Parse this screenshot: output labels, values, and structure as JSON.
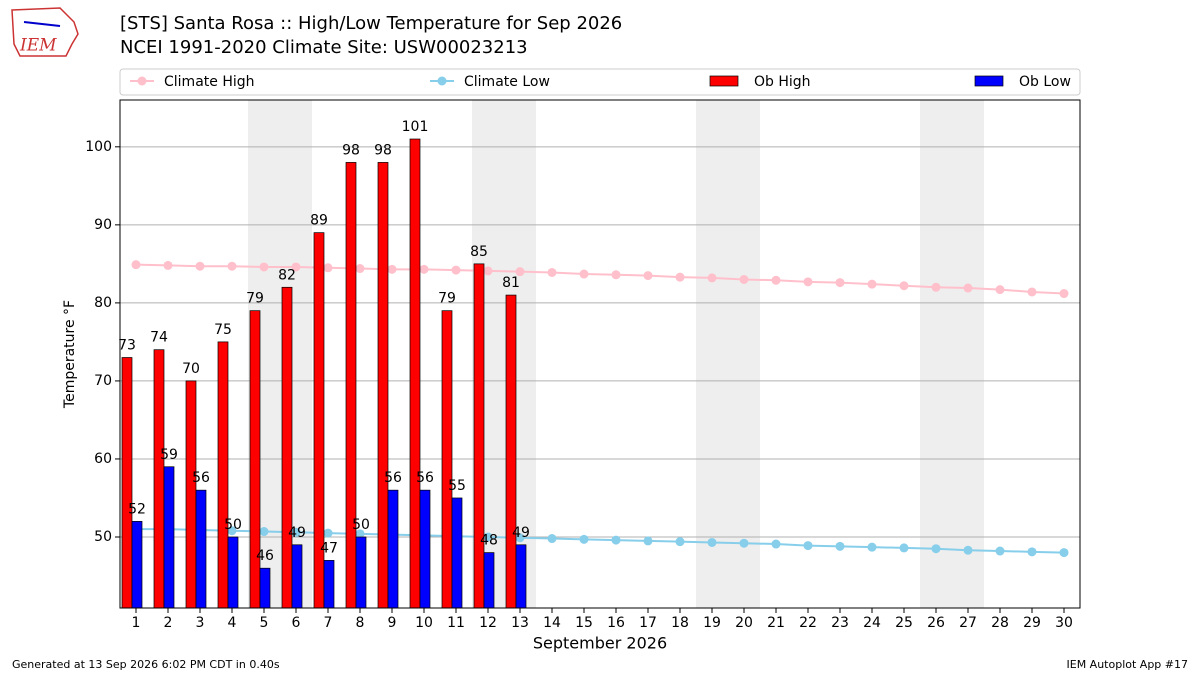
{
  "logo_text": "IEM",
  "footer_left": "Generated at 13 Sep 2026 6:02 PM CDT in 0.40s",
  "footer_right": "IEM Autoplot App #17",
  "chart_data": {
    "type": "bar_line",
    "title": "[STS] Santa Rosa :: High/Low Temperature for Sep 2026",
    "subtitle": "NCEI 1991-2020 Climate Site: USW00023213",
    "xlabel": "September 2026",
    "ylabel": "Temperature °F",
    "categories": [
      "1",
      "2",
      "3",
      "4",
      "5",
      "6",
      "7",
      "8",
      "9",
      "10",
      "11",
      "12",
      "13",
      "14",
      "15",
      "16",
      "17",
      "18",
      "19",
      "20",
      "21",
      "22",
      "23",
      "24",
      "25",
      "26",
      "27",
      "28",
      "29",
      "30"
    ],
    "shaded": [
      5,
      6,
      12,
      13,
      19,
      20,
      26,
      27
    ],
    "series": [
      {
        "name": "Climate High",
        "color": "#ffc0cb",
        "kind": "line",
        "values": [
          84.9,
          84.8,
          84.7,
          84.7,
          84.6,
          84.6,
          84.5,
          84.4,
          84.3,
          84.3,
          84.2,
          84.1,
          84.0,
          83.9,
          83.7,
          83.6,
          83.5,
          83.3,
          83.2,
          83.0,
          82.9,
          82.7,
          82.6,
          82.4,
          82.2,
          82.0,
          81.9,
          81.7,
          81.4,
          81.2
        ]
      },
      {
        "name": "Climate Low",
        "color": "#87ceeb",
        "kind": "line",
        "values": [
          51.0,
          51.0,
          50.9,
          50.8,
          50.7,
          50.6,
          50.5,
          50.4,
          50.3,
          50.2,
          50.1,
          50.0,
          49.9,
          49.8,
          49.7,
          49.6,
          49.5,
          49.4,
          49.3,
          49.2,
          49.1,
          48.9,
          48.8,
          48.7,
          48.6,
          48.5,
          48.3,
          48.2,
          48.1,
          48.0
        ]
      },
      {
        "name": "Ob High",
        "color": "#ff0000",
        "kind": "bar",
        "values": [
          73,
          74,
          70,
          75,
          79,
          82,
          89,
          98,
          98,
          101,
          79,
          85,
          81,
          null,
          null,
          null,
          null,
          null,
          null,
          null,
          null,
          null,
          null,
          null,
          null,
          null,
          null,
          null,
          null,
          null
        ]
      },
      {
        "name": "Ob Low",
        "color": "#0000ff",
        "kind": "bar",
        "values": [
          52,
          59,
          56,
          50,
          46,
          49,
          47,
          50,
          56,
          56,
          55,
          48,
          49,
          null,
          null,
          null,
          null,
          null,
          null,
          null,
          null,
          null,
          null,
          null,
          null,
          null,
          null,
          null,
          null,
          null
        ]
      }
    ],
    "ylim": [
      40.9,
      106
    ],
    "yticks": [
      50,
      60,
      70,
      80,
      90,
      100
    ],
    "grid": true,
    "legend": "top"
  }
}
